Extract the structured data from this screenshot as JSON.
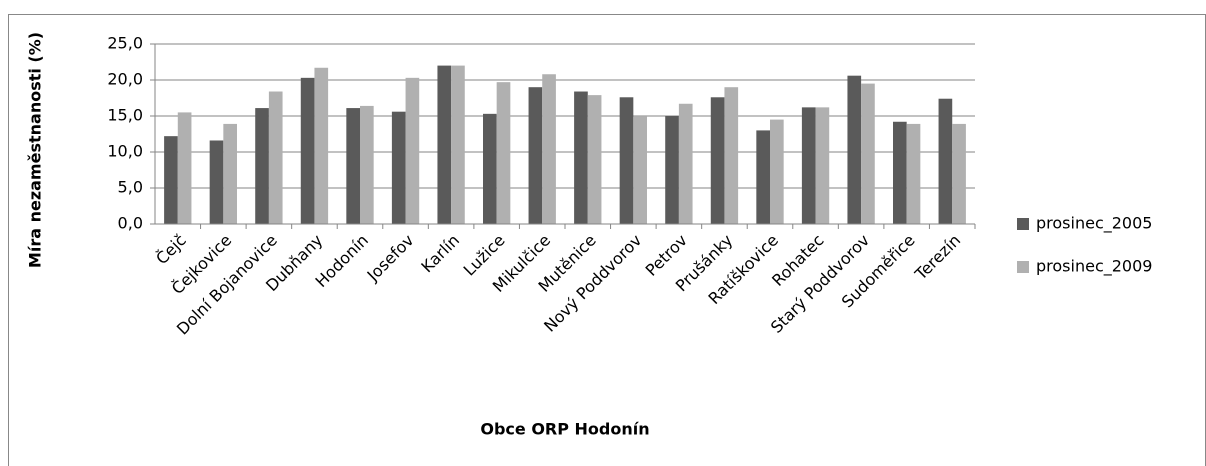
{
  "chart_data": {
    "type": "bar",
    "x_label": "Obce ORP Hodonín",
    "y_label": "Míra nezaměstnanosti (%)",
    "categories": [
      "Čejč",
      "Čejkovice",
      "Dolní Bojanovice",
      "Dubňany",
      "Hodonín",
      "Josefov",
      "Karlín",
      "Lužice",
      "Mikulčice",
      "Mutěnice",
      "Nový Poddvorov",
      "Petrov",
      "Prušánky",
      "Ratíškovice",
      "Rohatec",
      "Starý Poddvorov",
      "Sudoměřice",
      "Terezín"
    ],
    "series": [
      {
        "name": "prosinec_2005",
        "color": "#5a5a5a",
        "values": [
          12.2,
          11.6,
          16.1,
          20.3,
          16.1,
          15.6,
          22.0,
          15.3,
          19.0,
          18.4,
          17.6,
          15.0,
          17.6,
          13.0,
          16.2,
          20.6,
          14.2,
          17.4
        ]
      },
      {
        "name": "prosinec_2009",
        "color": "#b0b0b0",
        "values": [
          15.5,
          13.9,
          18.4,
          21.7,
          16.4,
          20.3,
          22.0,
          19.7,
          20.8,
          17.9,
          14.9,
          16.7,
          19.0,
          14.5,
          16.2,
          19.5,
          13.9,
          13.9
        ]
      }
    ],
    "ylim": [
      0,
      25
    ],
    "yticks": [
      {
        "value": 0,
        "label": "0,0"
      },
      {
        "value": 5,
        "label": "5,0"
      },
      {
        "value": 10,
        "label": "10,0"
      },
      {
        "value": 15,
        "label": "15,0"
      },
      {
        "value": 20,
        "label": "20,0"
      },
      {
        "value": 25,
        "label": "25,0"
      }
    ],
    "grid": true,
    "legend": "right"
  }
}
